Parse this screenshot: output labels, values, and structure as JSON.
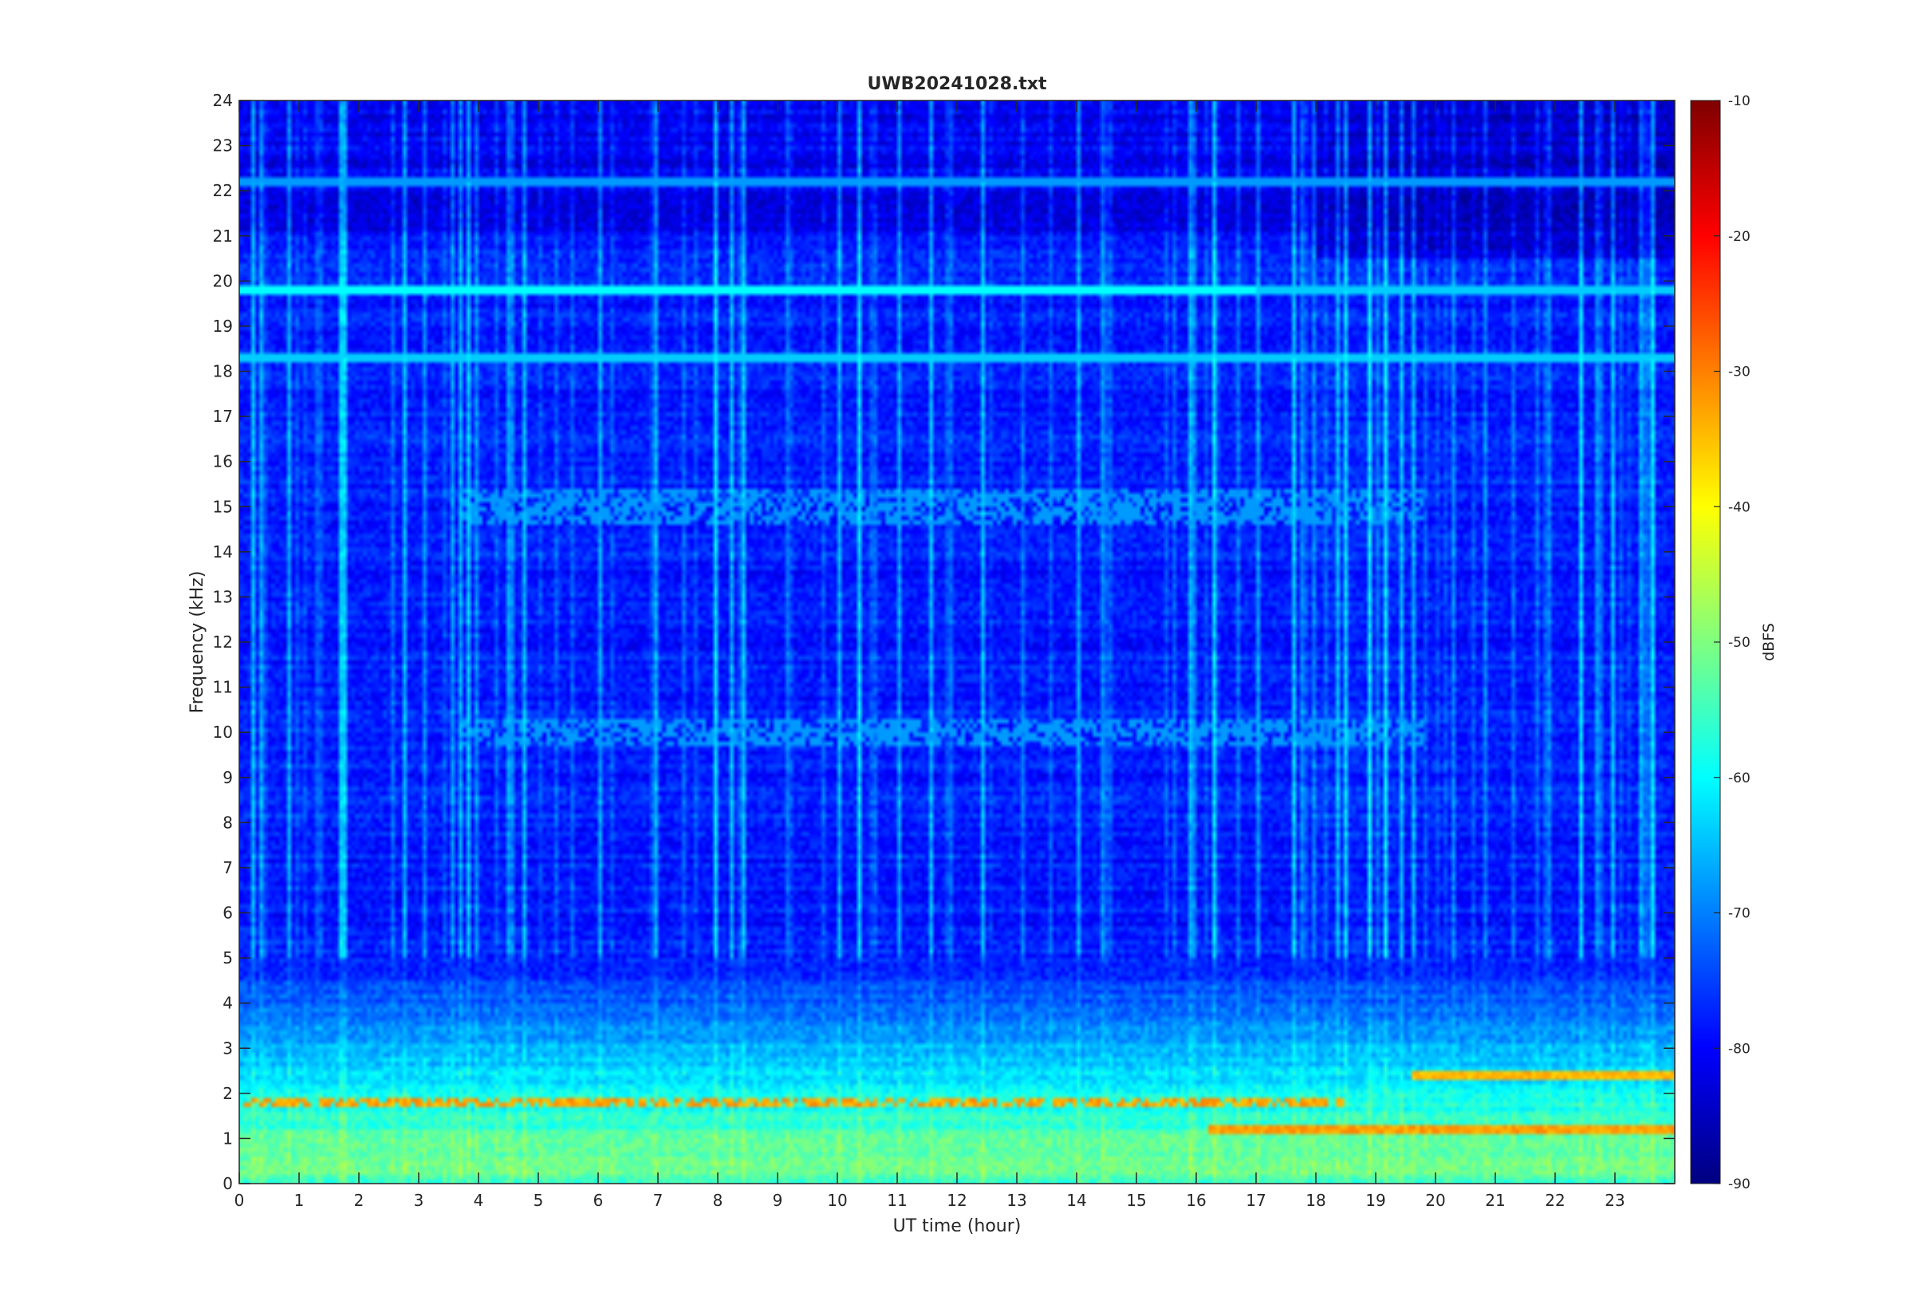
{
  "chart_data": {
    "type": "heatmap",
    "title": "UWB20241028.txt",
    "xlabel": "UT time (hour)",
    "ylabel": "Frequency (kHz)",
    "xlim": [
      0,
      24
    ],
    "ylim": [
      0,
      24
    ],
    "x_ticks": [
      0,
      1,
      2,
      3,
      4,
      5,
      6,
      7,
      8,
      9,
      10,
      11,
      12,
      13,
      14,
      15,
      16,
      17,
      18,
      19,
      20,
      21,
      22,
      23
    ],
    "y_ticks": [
      0,
      1,
      2,
      3,
      4,
      5,
      6,
      7,
      8,
      9,
      10,
      11,
      12,
      13,
      14,
      15,
      16,
      17,
      18,
      19,
      20,
      21,
      22,
      23,
      24
    ],
    "colorbar": {
      "label": "dBFS",
      "range": [
        -90,
        -10
      ],
      "ticks": [
        -10,
        -20,
        -30,
        -40,
        -50,
        -60,
        -70,
        -80,
        -90
      ],
      "colormap": "jet"
    },
    "grid": false,
    "features": {
      "background_level_dBFS": -78,
      "persistent_tones_kHz": [
        19.8,
        18.3,
        22.2
      ],
      "low_frequency_band_kHz": [
        0,
        5
      ],
      "strong_tone_near_kHz": [
        1.8,
        1.2,
        2.4
      ]
    }
  }
}
